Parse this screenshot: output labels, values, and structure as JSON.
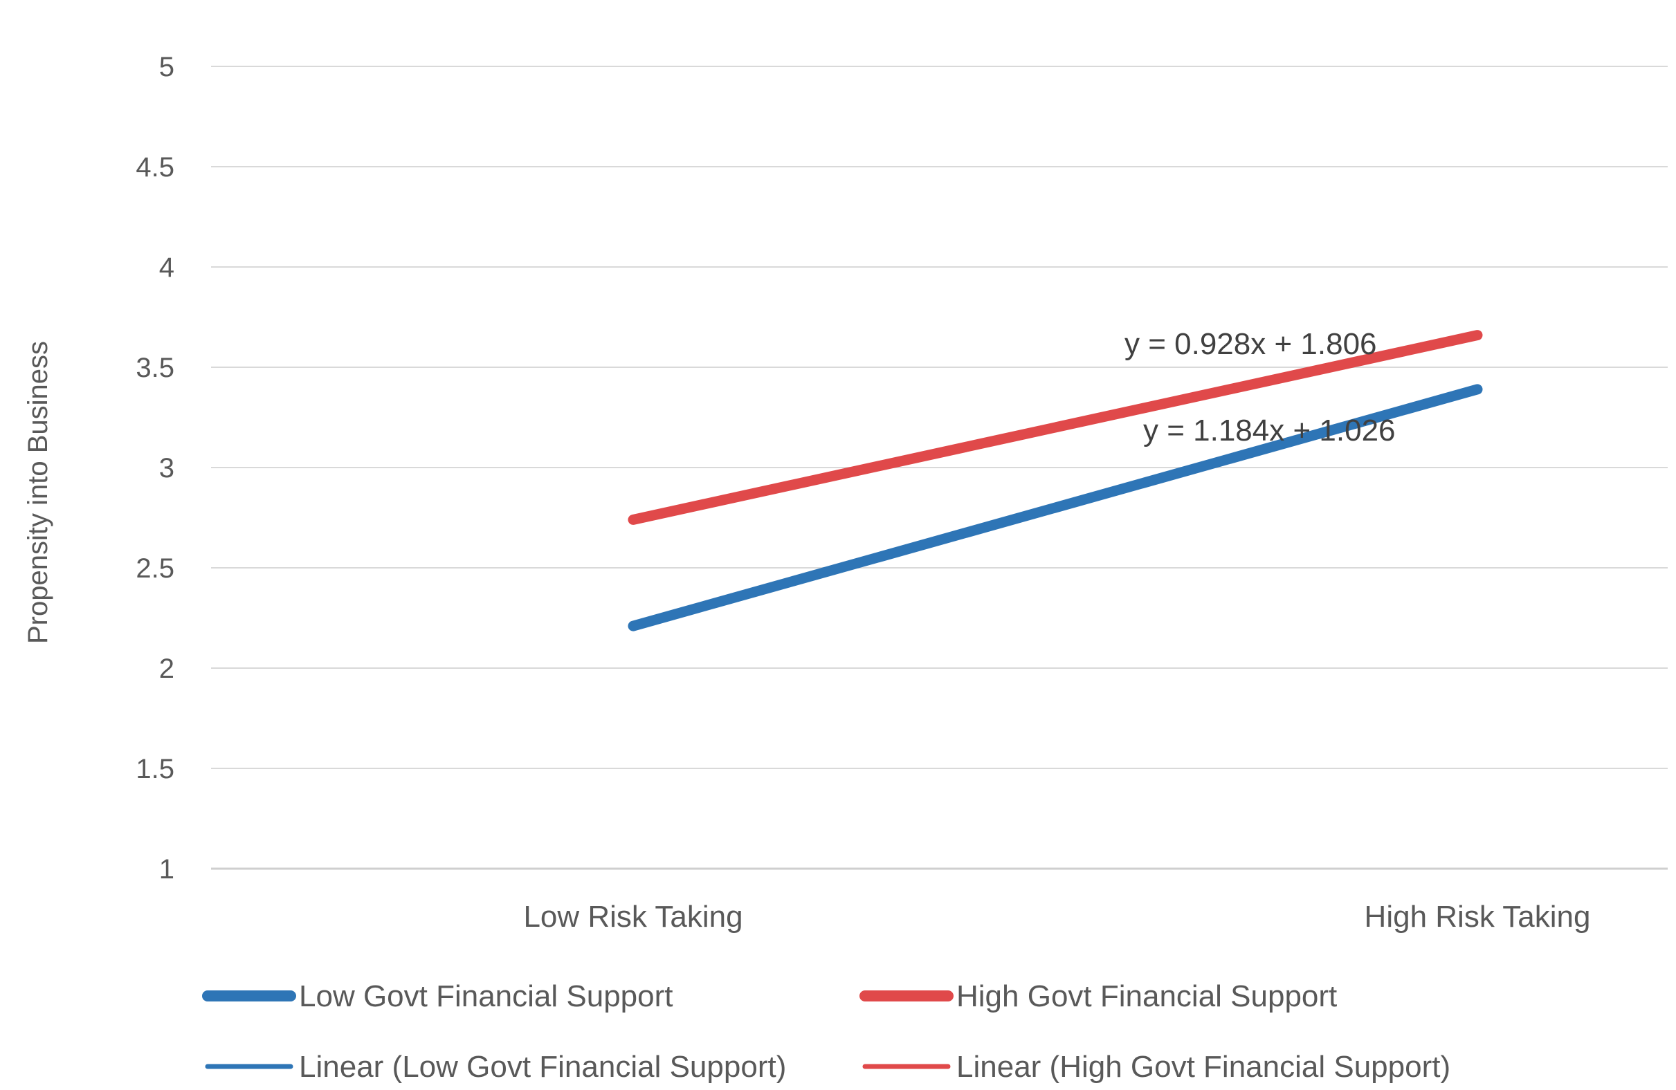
{
  "chart_data": {
    "type": "line",
    "title": "",
    "xlabel": "",
    "ylabel": "Propensity into Business",
    "categories": [
      "Low Risk Taking",
      "High Risk Taking"
    ],
    "ylim": [
      1,
      5
    ],
    "yticks": [
      1,
      1.5,
      2,
      2.5,
      3,
      3.5,
      4,
      4.5,
      5
    ],
    "grid": true,
    "legend_position": "bottom",
    "series": [
      {
        "name": "Low Govt Financial Support",
        "values": [
          2.21,
          3.39
        ],
        "color": "#2E75B6"
      },
      {
        "name": "High Govt Financial Support",
        "values": [
          2.74,
          3.66
        ],
        "color": "#E0494A"
      }
    ],
    "trendlines": [
      {
        "name": "Linear (Low Govt Financial Support)",
        "equation": "y = 1.184x + 1.026",
        "color": "#2E75B6"
      },
      {
        "name": "Linear (High Govt Financial Support)",
        "equation": "y = 0.928x + 1.806",
        "color": "#E0494A"
      }
    ]
  }
}
